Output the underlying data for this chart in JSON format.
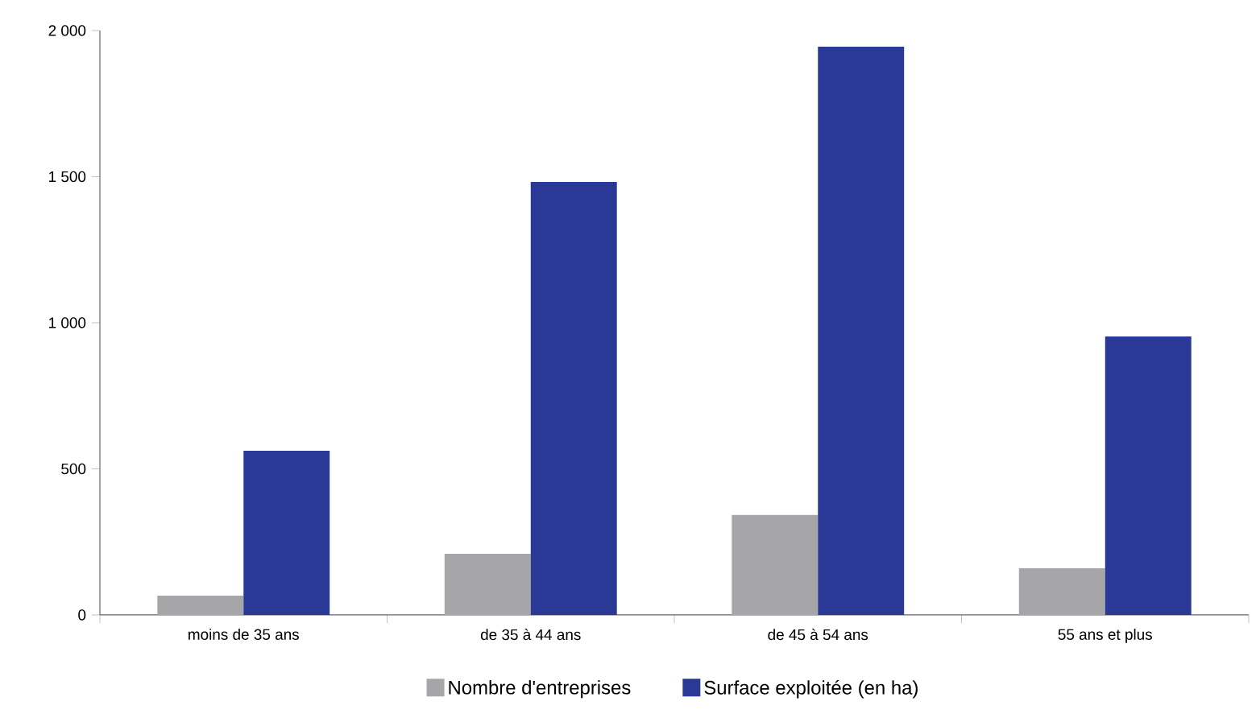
{
  "chart_data": {
    "type": "bar",
    "categories": [
      "moins de 35 ans",
      "de 35 à 44 ans",
      "de 45 à 54 ans",
      "55 ans et plus"
    ],
    "series": [
      {
        "name": "Nombre d'entreprises",
        "color": "#a6a6a8",
        "values": [
          66,
          209,
          342,
          160
        ]
      },
      {
        "name": "Surface exploitée (en ha)",
        "color": "#2a3896",
        "values": [
          562,
          1482,
          1945,
          953
        ]
      }
    ],
    "ylim": [
      0,
      2000
    ],
    "yticks": [
      0,
      500,
      {
        "value": 1000,
        "label": "1 000"
      },
      {
        "value": 1500,
        "label": "1 500"
      },
      {
        "value": 2000,
        "label": "2 000"
      }
    ],
    "grid": false,
    "legend": "bottom"
  }
}
